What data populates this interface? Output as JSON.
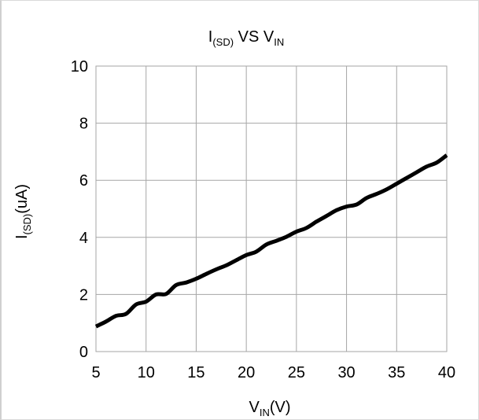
{
  "chart_data": {
    "type": "line",
    "title": {
      "main": "I",
      "main_sub": "(SD)",
      "mid": " VS V",
      "mid_sub": "IN"
    },
    "xlabel": {
      "main": "V",
      "sub": "IN",
      "suffix": "(V)"
    },
    "ylabel": {
      "main": "I",
      "sub": "(SD)",
      "suffix": "(uA)"
    },
    "xlim": [
      5,
      40
    ],
    "ylim": [
      0,
      10
    ],
    "xticks": [
      5,
      10,
      15,
      20,
      25,
      30,
      35,
      40
    ],
    "yticks": [
      0,
      2,
      4,
      6,
      8,
      10
    ],
    "grid": true,
    "legend": "none",
    "line_color": "#000000",
    "grid_color": "#a6a6a6",
    "x": [
      5,
      6,
      7,
      8,
      9,
      10,
      11,
      12,
      13,
      14,
      15,
      16,
      17,
      18,
      19,
      20,
      21,
      22,
      23,
      24,
      25,
      26,
      27,
      28,
      29,
      30,
      31,
      32,
      33,
      34,
      35,
      36,
      37,
      38,
      39,
      40
    ],
    "y": [
      0.88,
      1.05,
      1.25,
      1.32,
      1.65,
      1.75,
      2.0,
      2.02,
      2.33,
      2.42,
      2.55,
      2.72,
      2.88,
      3.02,
      3.2,
      3.38,
      3.5,
      3.75,
      3.88,
      4.02,
      4.2,
      4.33,
      4.55,
      4.75,
      4.95,
      5.08,
      5.15,
      5.38,
      5.52,
      5.68,
      5.88,
      6.08,
      6.28,
      6.48,
      6.62,
      6.88
    ]
  }
}
